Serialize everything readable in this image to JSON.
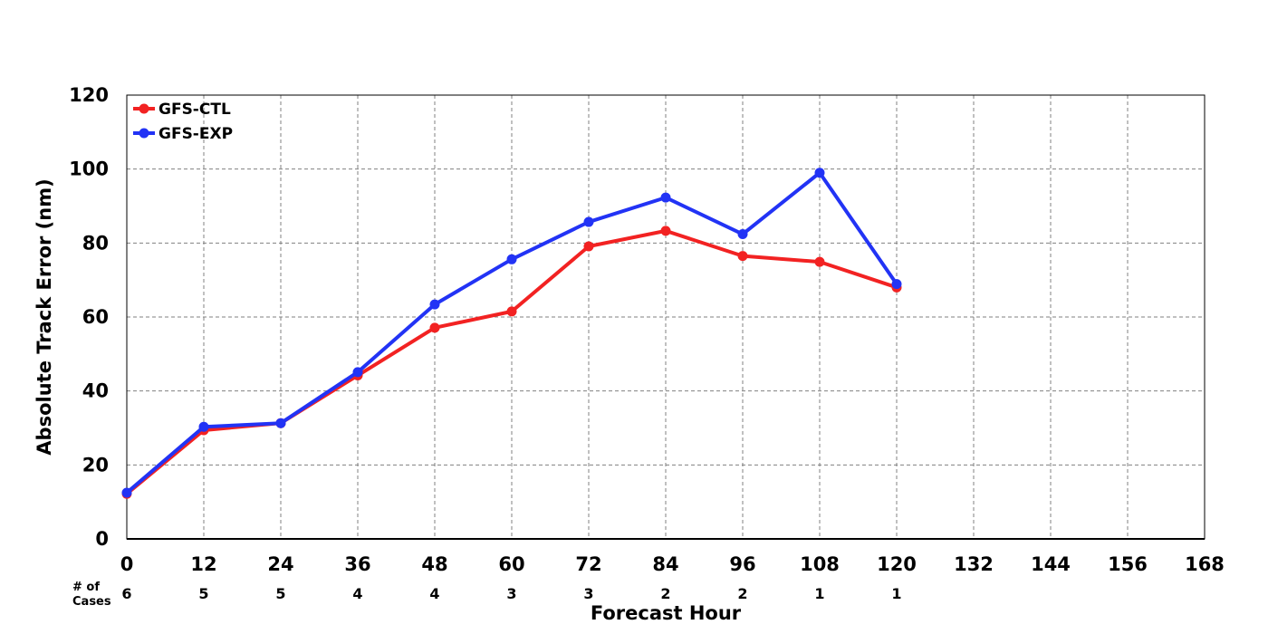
{
  "chart_data": {
    "type": "line",
    "title": "",
    "xlabel": "Forecast Hour",
    "ylabel": "Absolute Track Error (nm)",
    "xlim": [
      0,
      168
    ],
    "ylim": [
      0,
      120
    ],
    "x_ticks": [
      "0",
      "12",
      "24",
      "36",
      "48",
      "60",
      "72",
      "84",
      "96",
      "108",
      "120",
      "132",
      "144",
      "156",
      "168"
    ],
    "y_ticks": [
      "0",
      "20",
      "40",
      "60",
      "80",
      "100",
      "120"
    ],
    "grid": true,
    "legend_position": "top-left",
    "x": [
      0,
      12,
      24,
      36,
      48,
      60,
      72,
      84,
      96,
      108,
      120
    ],
    "series": [
      {
        "name": "GFS-CTL",
        "color": "#f22222",
        "values": [
          12.2,
          29.4,
          31.3,
          44.2,
          57.1,
          61.5,
          79.1,
          83.3,
          76.5,
          74.9,
          68.0
        ]
      },
      {
        "name": "GFS-EXP",
        "color": "#2233f5",
        "values": [
          12.5,
          30.3,
          31.3,
          45.1,
          63.4,
          75.6,
          85.7,
          92.3,
          82.4,
          99.0,
          68.9
        ]
      }
    ],
    "cases_title": [
      "# of",
      "Cases"
    ],
    "cases": [
      "6",
      "5",
      "5",
      "4",
      "4",
      "3",
      "3",
      "2",
      "2",
      "1",
      "1"
    ]
  }
}
